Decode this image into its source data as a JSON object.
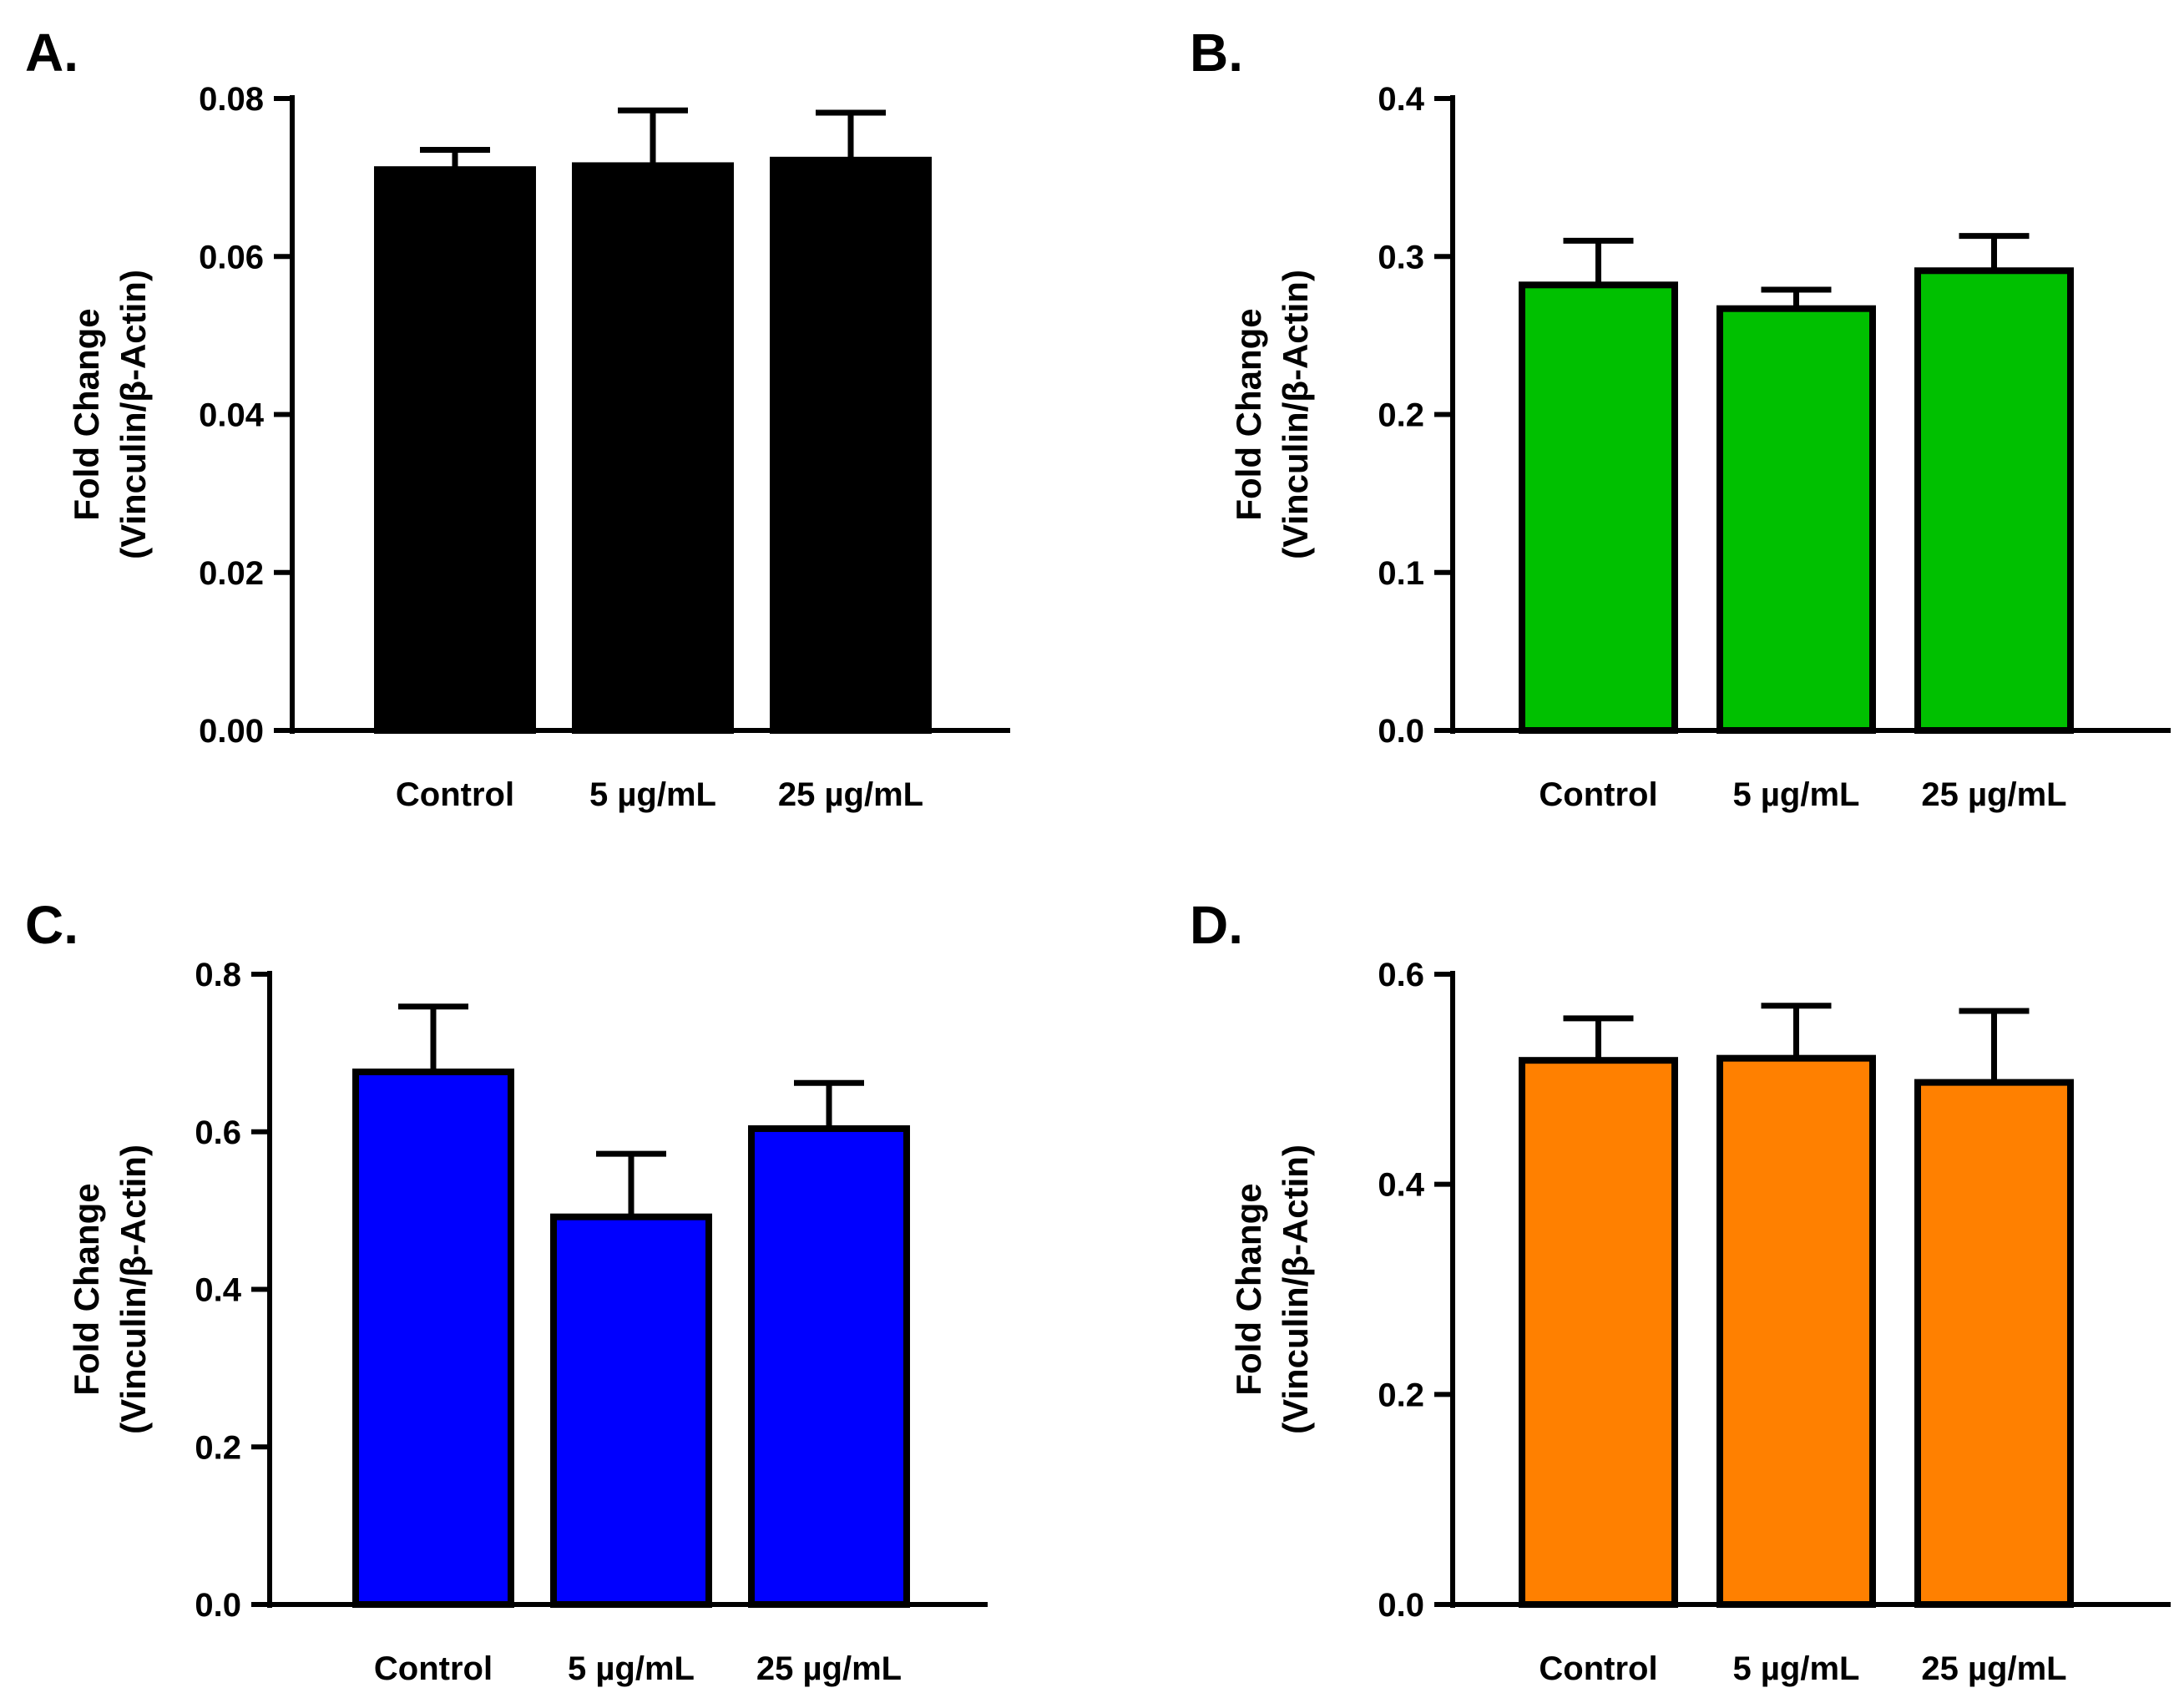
{
  "chart_data": [
    {
      "type": "bar",
      "panel_label": "A.",
      "categories": [
        "Control",
        "5 µg/mL",
        "25 µg/mL"
      ],
      "values": [
        0.071,
        0.0715,
        0.0722
      ],
      "errors": [
        0.0025,
        0.007,
        0.006
      ],
      "ylabel": [
        "Fold Change",
        "(Vinculin/β-Actin)"
      ],
      "ylim": [
        0,
        0.08
      ],
      "yticks": [
        "0.00",
        "0.02",
        "0.04",
        "0.06",
        "0.08"
      ],
      "color": "#000000"
    },
    {
      "type": "bar",
      "panel_label": "B.",
      "categories": [
        "Control",
        "5 µg/mL",
        "25 µg/mL"
      ],
      "values": [
        0.282,
        0.267,
        0.291
      ],
      "errors": [
        0.028,
        0.012,
        0.022
      ],
      "ylabel": [
        "Fold Change",
        "(Vinculin/β-Actin)"
      ],
      "ylim": [
        0,
        0.4
      ],
      "yticks": [
        "0.0",
        "0.1",
        "0.2",
        "0.3",
        "0.4"
      ],
      "color": "#00C000"
    },
    {
      "type": "bar",
      "panel_label": "C.",
      "categories": [
        "Control",
        "5 µg/mL",
        "25 µg/mL"
      ],
      "values": [
        0.676,
        0.492,
        0.604
      ],
      "errors": [
        0.083,
        0.08,
        0.058
      ],
      "ylabel": [
        "Fold Change",
        "(Vinculin/β-Actin)"
      ],
      "ylim": [
        0,
        0.8
      ],
      "yticks": [
        "0.0",
        "0.2",
        "0.4",
        "0.6",
        "0.8"
      ],
      "color": "#0000FF"
    },
    {
      "type": "bar",
      "panel_label": "D.",
      "categories": [
        "Control",
        "5 µg/mL",
        "25 µg/mL"
      ],
      "values": [
        0.518,
        0.52,
        0.497
      ],
      "errors": [
        0.04,
        0.05,
        0.068
      ],
      "ylabel": [
        "Fold Change",
        "(Vinculin/β-Actin)"
      ],
      "ylim": [
        0,
        0.6
      ],
      "yticks": [
        "0.0",
        "0.2",
        "0.4",
        "0.6"
      ],
      "color": "#FF8000"
    }
  ]
}
